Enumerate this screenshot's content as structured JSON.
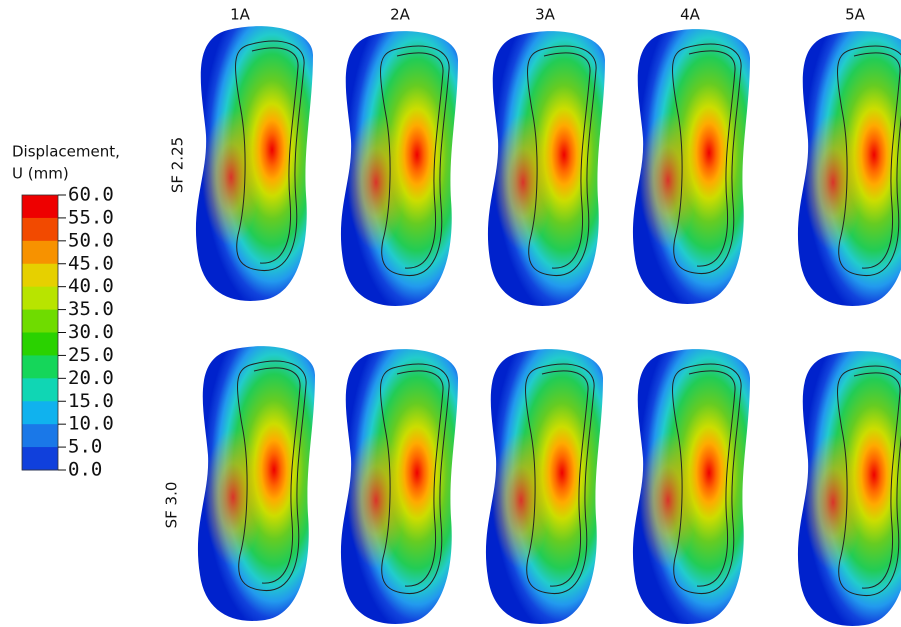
{
  "legend": {
    "title": "Displacement,",
    "subtitle": "U (mm)",
    "labels": [
      "60.0",
      "55.0",
      "50.0",
      "45.0",
      "40.0",
      "35.0",
      "30.0",
      "25.0",
      "20.0",
      "15.0",
      "10.0",
      "5.0",
      "0.0"
    ],
    "colors": [
      "#ee0000",
      "#f24a00",
      "#f79200",
      "#e6d000",
      "#b8e400",
      "#6fdc00",
      "#2ad200",
      "#15d65a",
      "#10d6b4",
      "#10b2ee",
      "#1a78e8",
      "#1040dc",
      "#0818e0"
    ]
  },
  "columns": [
    "1A",
    "2A",
    "3A",
    "4A",
    "5A"
  ],
  "rows": [
    "SF 2.25",
    "SF 3.0"
  ]
}
